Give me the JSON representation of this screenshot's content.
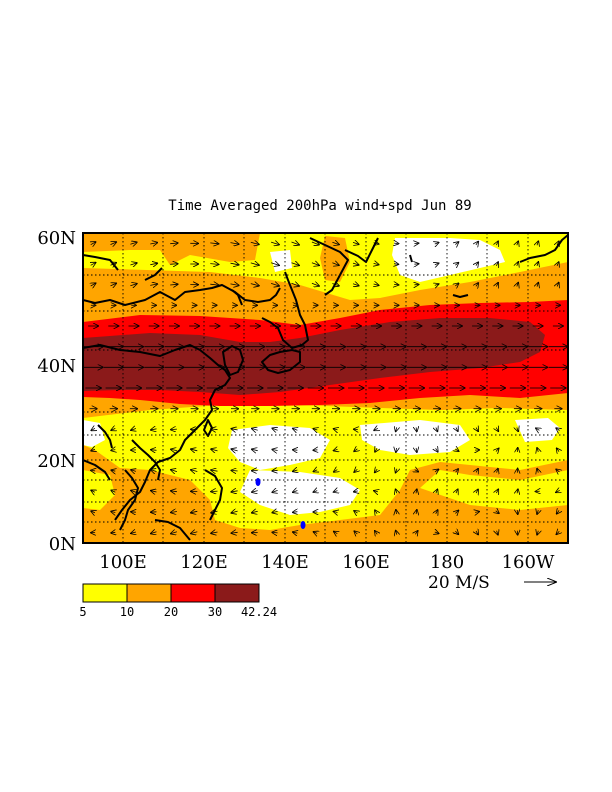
{
  "title": "Time Averaged 200hPa wind+spd  Jun 89",
  "y_ticks": [
    "60N",
    "40N",
    "20N",
    "0N"
  ],
  "x_ticks": [
    "100E",
    "120E",
    "140E",
    "160E",
    "180",
    "160W"
  ],
  "reference_vector": {
    "label": "20 M/S",
    "speed": 20,
    "units": "M/S"
  },
  "legend": {
    "levels": [
      "5",
      "10",
      "20",
      "30",
      "42.24"
    ],
    "colors": [
      "#ffff00",
      "#ffa500",
      "#ff0000",
      "#8b1a1a"
    ]
  },
  "colors": {
    "background": "#ffffff",
    "coast": "#000000",
    "grid": "#000000",
    "vectors": "#000000",
    "lake_blue": "#0000ff"
  }
}
